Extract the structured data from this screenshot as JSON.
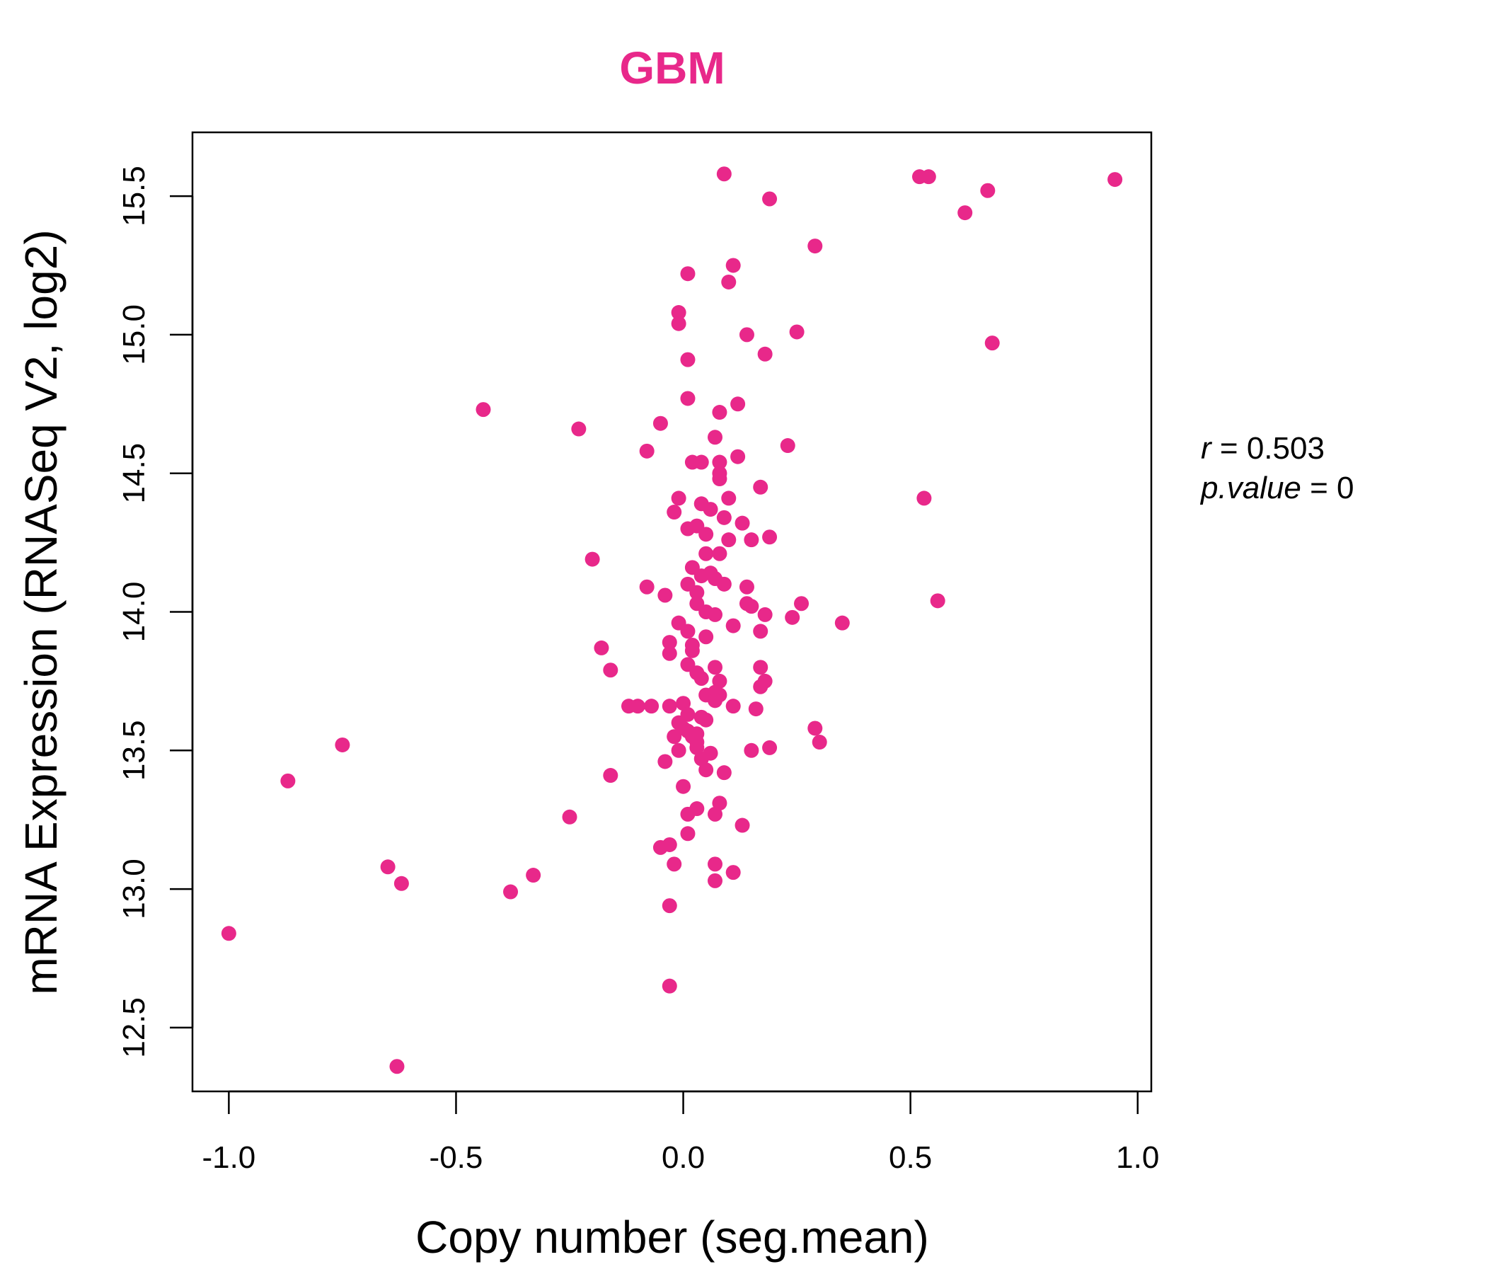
{
  "chart_data": {
    "type": "scatter",
    "title": "GBM",
    "xlabel": "Copy number (seg.mean)",
    "ylabel": "mRNA Expression (RNASeq V2, log2)",
    "xlim": [
      -1.08,
      1.03
    ],
    "ylim": [
      12.27,
      15.73
    ],
    "x_ticks": [
      -1.0,
      -0.5,
      0.0,
      0.5,
      1.0
    ],
    "x_tick_labels": [
      "-1.0",
      "-0.5",
      "0.0",
      "0.5",
      "1.0"
    ],
    "y_ticks": [
      12.5,
      13.0,
      13.5,
      14.0,
      14.5,
      15.0,
      15.5
    ],
    "y_tick_labels": [
      "12.5",
      "13.0",
      "13.5",
      "14.0",
      "14.5",
      "15.0",
      "15.5"
    ],
    "grid": false,
    "colors": {
      "points": "#E8288A",
      "title": "#E8288A"
    },
    "annotation": {
      "r_label": "r",
      "r_value": "0.503",
      "p_label": "p.value",
      "p_value": "0"
    },
    "points": [
      [
        0.09,
        15.58
      ],
      [
        0.52,
        15.57
      ],
      [
        0.54,
        15.57
      ],
      [
        0.95,
        15.56
      ],
      [
        0.67,
        15.52
      ],
      [
        0.19,
        15.49
      ],
      [
        0.62,
        15.44
      ],
      [
        0.29,
        15.32
      ],
      [
        0.11,
        15.25
      ],
      [
        0.01,
        15.22
      ],
      [
        0.1,
        15.19
      ],
      [
        -0.01,
        15.08
      ],
      [
        -0.01,
        15.04
      ],
      [
        0.14,
        15.0
      ],
      [
        0.25,
        15.01
      ],
      [
        0.68,
        14.97
      ],
      [
        0.18,
        14.93
      ],
      [
        0.01,
        14.91
      ],
      [
        0.01,
        14.77
      ],
      [
        0.12,
        14.75
      ],
      [
        0.08,
        14.72
      ],
      [
        -0.44,
        14.73
      ],
      [
        -0.23,
        14.66
      ],
      [
        -0.05,
        14.68
      ],
      [
        0.07,
        14.63
      ],
      [
        0.23,
        14.6
      ],
      [
        -0.08,
        14.58
      ],
      [
        0.12,
        14.56
      ],
      [
        0.02,
        14.54
      ],
      [
        0.04,
        14.54
      ],
      [
        0.08,
        14.54
      ],
      [
        0.08,
        14.5
      ],
      [
        0.08,
        14.48
      ],
      [
        0.17,
        14.45
      ],
      [
        -0.01,
        14.41
      ],
      [
        0.04,
        14.39
      ],
      [
        0.1,
        14.41
      ],
      [
        0.06,
        14.37
      ],
      [
        0.53,
        14.41
      ],
      [
        -0.02,
        14.36
      ],
      [
        0.09,
        14.34
      ],
      [
        0.13,
        14.32
      ],
      [
        0.01,
        14.3
      ],
      [
        0.03,
        14.31
      ],
      [
        0.05,
        14.28
      ],
      [
        0.1,
        14.26
      ],
      [
        0.15,
        14.26
      ],
      [
        0.19,
        14.27
      ],
      [
        0.05,
        14.21
      ],
      [
        0.08,
        14.21
      ],
      [
        -0.2,
        14.19
      ],
      [
        0.02,
        14.16
      ],
      [
        0.04,
        14.13
      ],
      [
        0.06,
        14.14
      ],
      [
        0.07,
        14.12
      ],
      [
        0.01,
        14.1
      ],
      [
        0.09,
        14.1
      ],
      [
        0.14,
        14.09
      ],
      [
        -0.08,
        14.09
      ],
      [
        -0.04,
        14.06
      ],
      [
        0.03,
        14.07
      ],
      [
        0.56,
        14.04
      ],
      [
        0.03,
        14.03
      ],
      [
        0.14,
        14.03
      ],
      [
        0.15,
        14.02
      ],
      [
        0.26,
        14.03
      ],
      [
        0.05,
        14.0
      ],
      [
        0.07,
        13.99
      ],
      [
        0.18,
        13.99
      ],
      [
        0.24,
        13.98
      ],
      [
        -0.01,
        13.96
      ],
      [
        0.11,
        13.95
      ],
      [
        0.35,
        13.96
      ],
      [
        0.01,
        13.93
      ],
      [
        0.17,
        13.93
      ],
      [
        0.05,
        13.91
      ],
      [
        -0.03,
        13.89
      ],
      [
        0.02,
        13.88
      ],
      [
        -0.18,
        13.87
      ],
      [
        0.02,
        13.86
      ],
      [
        -0.03,
        13.85
      ],
      [
        0.01,
        13.81
      ],
      [
        0.07,
        13.8
      ],
      [
        0.17,
        13.8
      ],
      [
        0.03,
        13.78
      ],
      [
        -0.16,
        13.79
      ],
      [
        0.04,
        13.76
      ],
      [
        0.08,
        13.75
      ],
      [
        0.18,
        13.75
      ],
      [
        0.17,
        13.73
      ],
      [
        0.05,
        13.7
      ],
      [
        0.07,
        13.71
      ],
      [
        0.08,
        13.7
      ],
      [
        -0.12,
        13.66
      ],
      [
        -0.1,
        13.66
      ],
      [
        -0.07,
        13.66
      ],
      [
        -0.03,
        13.66
      ],
      [
        0.0,
        13.67
      ],
      [
        0.07,
        13.68
      ],
      [
        0.11,
        13.66
      ],
      [
        0.16,
        13.65
      ],
      [
        0.01,
        13.63
      ],
      [
        0.04,
        13.62
      ],
      [
        0.05,
        13.61
      ],
      [
        -0.01,
        13.6
      ],
      [
        0.0,
        13.58
      ],
      [
        0.01,
        13.57
      ],
      [
        0.03,
        13.56
      ],
      [
        0.29,
        13.58
      ],
      [
        0.02,
        13.55
      ],
      [
        -0.02,
        13.55
      ],
      [
        0.03,
        13.53
      ],
      [
        0.3,
        13.53
      ],
      [
        0.03,
        13.51
      ],
      [
        -0.01,
        13.5
      ],
      [
        0.19,
        13.51
      ],
      [
        0.15,
        13.5
      ],
      [
        -0.75,
        13.52
      ],
      [
        0.06,
        13.49
      ],
      [
        0.04,
        13.47
      ],
      [
        -0.04,
        13.46
      ],
      [
        0.05,
        13.43
      ],
      [
        -0.16,
        13.41
      ],
      [
        0.09,
        13.42
      ],
      [
        -0.87,
        13.39
      ],
      [
        0.0,
        13.37
      ],
      [
        0.08,
        13.31
      ],
      [
        0.03,
        13.29
      ],
      [
        0.01,
        13.27
      ],
      [
        0.07,
        13.27
      ],
      [
        -0.25,
        13.26
      ],
      [
        0.13,
        13.23
      ],
      [
        0.01,
        13.2
      ],
      [
        -0.03,
        13.16
      ],
      [
        -0.05,
        13.15
      ],
      [
        -0.02,
        13.09
      ],
      [
        0.07,
        13.09
      ],
      [
        -0.65,
        13.08
      ],
      [
        0.11,
        13.06
      ],
      [
        -0.33,
        13.05
      ],
      [
        0.07,
        13.03
      ],
      [
        -0.62,
        13.02
      ],
      [
        -0.38,
        12.99
      ],
      [
        -0.03,
        12.94
      ],
      [
        -1.0,
        12.84
      ],
      [
        -0.03,
        12.65
      ],
      [
        -0.63,
        12.36
      ]
    ]
  }
}
